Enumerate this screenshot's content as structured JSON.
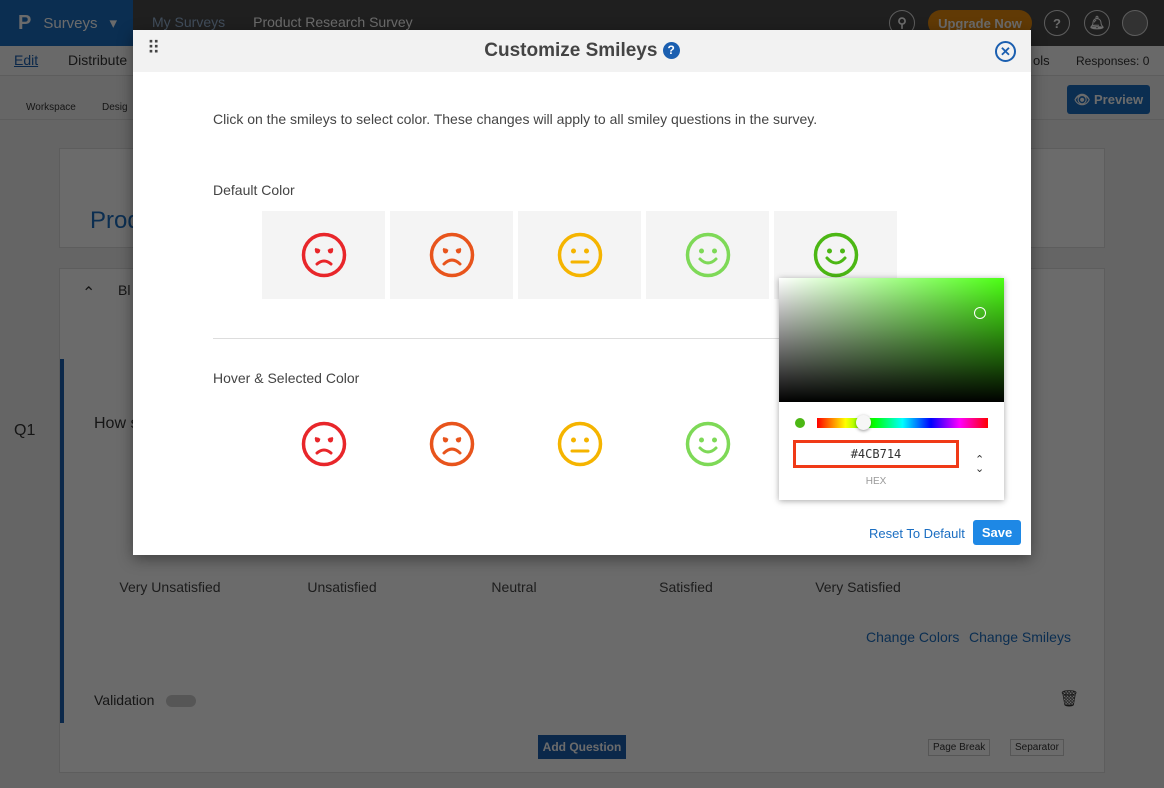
{
  "topbar": {
    "brand": "Surveys",
    "breadcrumb_parent": "My Surveys",
    "breadcrumb_current": "Product Research Survey",
    "upgrade": "Upgrade Now"
  },
  "subnav": {
    "edit": "Edit",
    "distribute": "Distribute",
    "tools": "ols",
    "responses": "Responses: 0"
  },
  "toolbar": {
    "workspace": "Workspace",
    "design": "Desig",
    "preview": "Preview"
  },
  "survey": {
    "title": "Prod",
    "block": "Bl",
    "qnum": "Q1",
    "question": "How s",
    "options": [
      "Very Unsatisfied",
      "Unsatisfied",
      "Neutral",
      "Satisfied",
      "Very Satisfied"
    ],
    "change_colors": "Change Colors",
    "change_smileys": "Change Smileys",
    "validation": "Validation",
    "add_question": "Add Question",
    "page_break": "Page Break",
    "separator": "Separator"
  },
  "modal": {
    "title": "Customize Smileys",
    "help": "?",
    "instruction": "Click on the smileys to select color. These changes will apply to all smiley questions in the survey.",
    "default_label": "Default Color",
    "hover_label": "Hover & Selected Color",
    "reset": "Reset To Default",
    "save": "Save",
    "default_smileys": [
      {
        "mood": "very-sad",
        "color": "#e8262a"
      },
      {
        "mood": "sad",
        "color": "#e8541c"
      },
      {
        "mood": "neutral",
        "color": "#f5b400"
      },
      {
        "mood": "happy",
        "color": "#7ed957"
      },
      {
        "mood": "very-happy",
        "color": "#4cb714"
      }
    ],
    "hover_smileys": [
      {
        "mood": "very-sad",
        "color": "#e8262a"
      },
      {
        "mood": "sad",
        "color": "#e8541c"
      },
      {
        "mood": "neutral",
        "color": "#f5b400"
      },
      {
        "mood": "happy",
        "color": "#7ed957"
      }
    ]
  },
  "picker": {
    "hex": "#4CB714",
    "mode_label": "HEX",
    "current_color": "#4cb714",
    "hue_fraction": 0.27
  }
}
